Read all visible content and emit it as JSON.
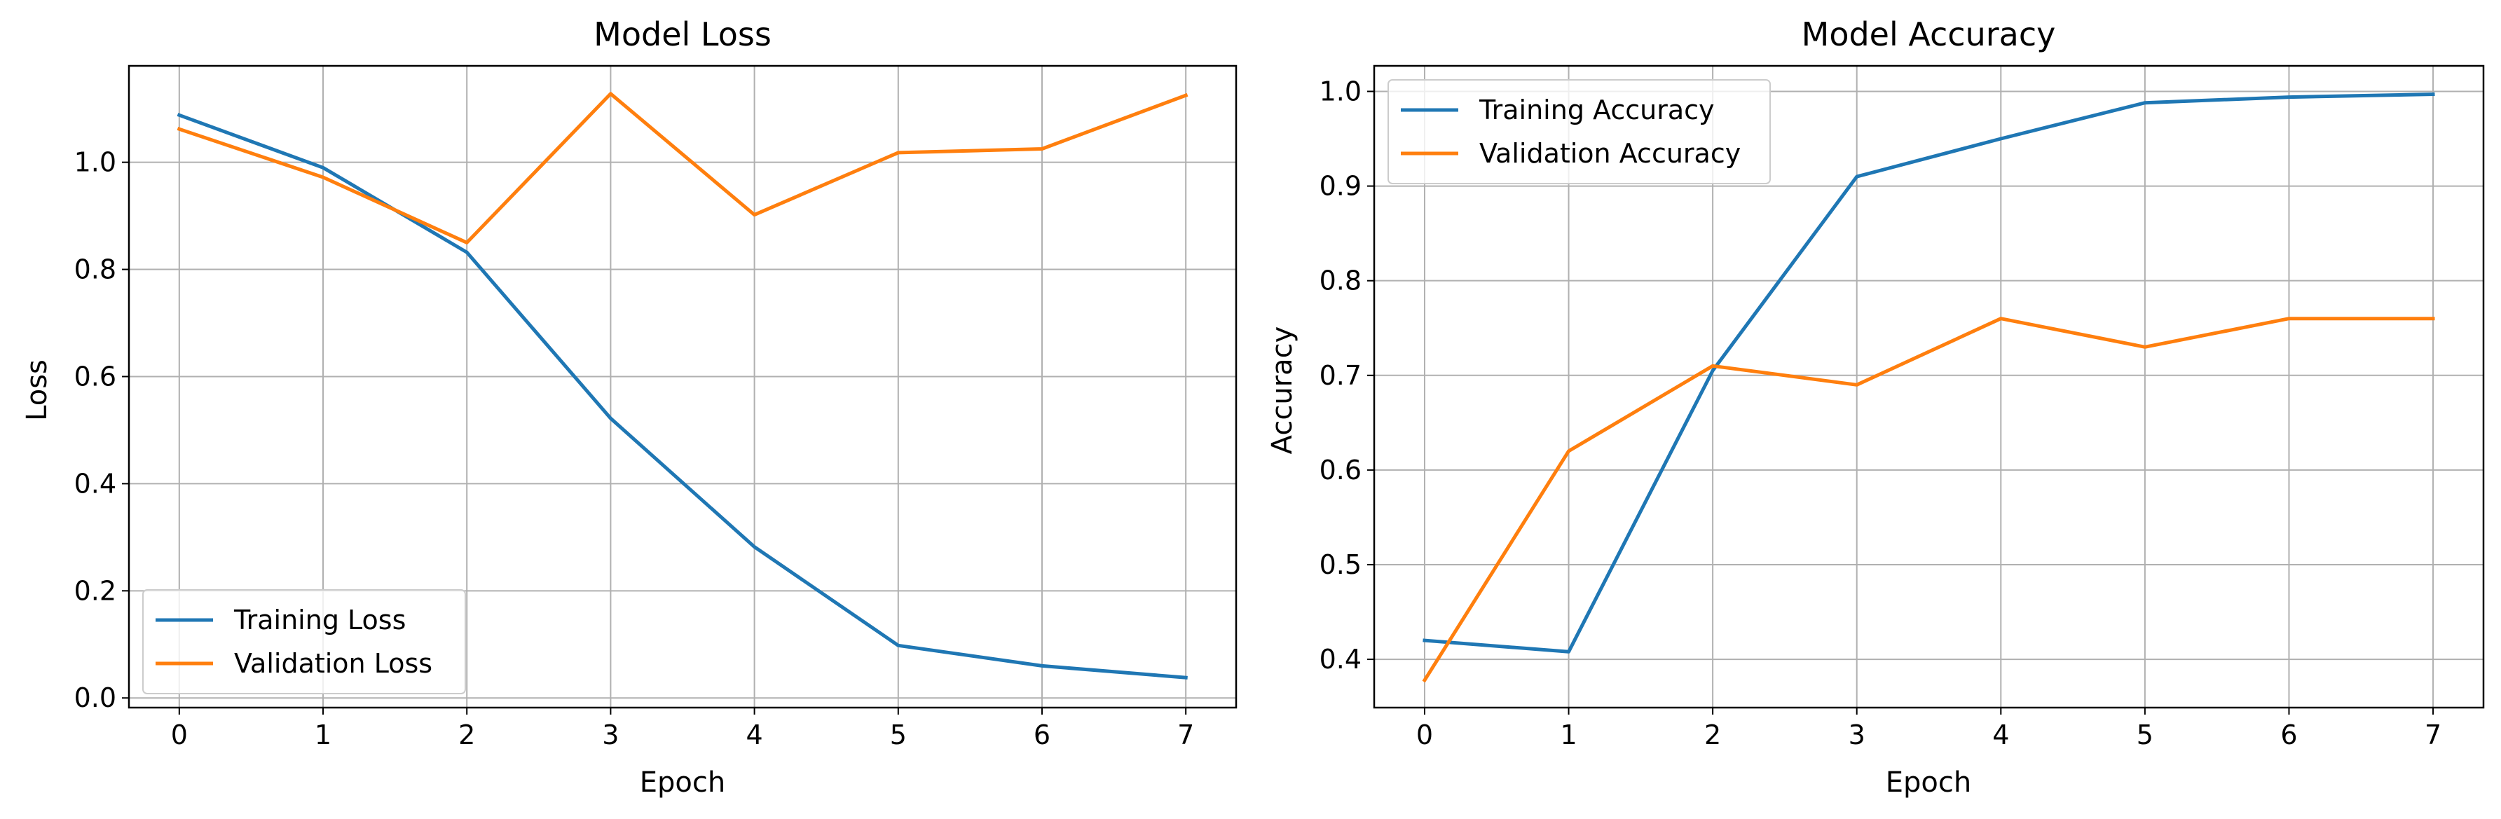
{
  "chart_data": [
    {
      "type": "line",
      "title": "Model Loss",
      "xlabel": "Epoch",
      "ylabel": "Loss",
      "x": [
        0,
        1,
        2,
        3,
        4,
        5,
        6,
        7
      ],
      "xlim": [
        -0.35,
        7.35
      ],
      "ylim": [
        -0.018,
        1.18
      ],
      "xticks": [
        0,
        1,
        2,
        3,
        4,
        5,
        6,
        7
      ],
      "yticks": [
        0.0,
        0.2,
        0.4,
        0.6,
        0.8,
        1.0
      ],
      "ytick_labels": [
        "0.0",
        "0.2",
        "0.4",
        "0.6",
        "0.8",
        "1.0"
      ],
      "grid": true,
      "legend_loc": "lower-left",
      "series": [
        {
          "name": "Training Loss",
          "color": "#1f77b4",
          "values": [
            1.088,
            0.99,
            0.832,
            0.522,
            0.282,
            0.098,
            0.06,
            0.038
          ]
        },
        {
          "name": "Validation Loss",
          "color": "#ff7f0e",
          "values": [
            1.062,
            0.972,
            0.85,
            1.128,
            0.902,
            1.018,
            1.025,
            1.125
          ]
        }
      ]
    },
    {
      "type": "line",
      "title": "Model Accuracy",
      "xlabel": "Epoch",
      "ylabel": "Accuracy",
      "x": [
        0,
        1,
        2,
        3,
        4,
        5,
        6,
        7
      ],
      "xlim": [
        -0.35,
        7.35
      ],
      "ylim": [
        0.349,
        1.027
      ],
      "xticks": [
        0,
        1,
        2,
        3,
        4,
        5,
        6,
        7
      ],
      "yticks": [
        0.4,
        0.5,
        0.6,
        0.7,
        0.8,
        0.9,
        1.0
      ],
      "ytick_labels": [
        "0.4",
        "0.5",
        "0.6",
        "0.7",
        "0.8",
        "0.9",
        "1.0"
      ],
      "grid": true,
      "legend_loc": "upper-left",
      "series": [
        {
          "name": "Training Accuracy",
          "color": "#1f77b4",
          "values": [
            0.42,
            0.408,
            0.705,
            0.91,
            0.95,
            0.988,
            0.994,
            0.997
          ]
        },
        {
          "name": "Validation Accuracy",
          "color": "#ff7f0e",
          "values": [
            0.378,
            0.62,
            0.71,
            0.69,
            0.76,
            0.73,
            0.76,
            0.76
          ]
        }
      ]
    }
  ]
}
